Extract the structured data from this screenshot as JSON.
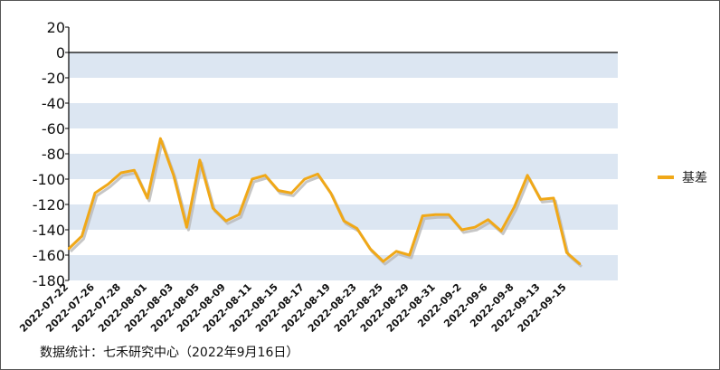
{
  "chart_data": {
    "type": "line",
    "title": "",
    "xlabel": "",
    "ylabel": "",
    "ylim": [
      -180,
      20
    ],
    "y_ticks": [
      20,
      0,
      -20,
      -40,
      -60,
      -80,
      -100,
      -120,
      -140,
      -160,
      -180
    ],
    "x_tick_labels": [
      "2022-07-22",
      "2022-07-26",
      "2022-07-28",
      "2022-08-01",
      "2022-08-03",
      "2022-08-05",
      "2022-08-09",
      "2022-08-11",
      "2022-08-15",
      "2022-08-17",
      "2022-08-19",
      "2022-08-23",
      "2022-08-25",
      "2022-08-29",
      "2022-08-31",
      "2022-09-2",
      "2022-09-6",
      "2022-09-8",
      "2022-09-13",
      "2022-09-15"
    ],
    "legend_position": "right",
    "background_bands": true,
    "series": [
      {
        "name": "基差",
        "color": "#f0a818",
        "values": [
          -155,
          -145,
          -111,
          -104,
          -95,
          -93,
          -115,
          -68,
          -97,
          -138,
          -85,
          -123,
          -133,
          -128,
          -100,
          -97,
          -109,
          -111,
          -100,
          -96,
          -111,
          -133,
          -139,
          -155,
          -165,
          -157,
          -160,
          -129,
          -128,
          -128,
          -140,
          -138,
          -132,
          -141,
          -122,
          -97,
          -116,
          -115,
          -158,
          -167
        ]
      }
    ]
  },
  "source_note": "数据统计：七禾研究中心（2022年9月16日）"
}
